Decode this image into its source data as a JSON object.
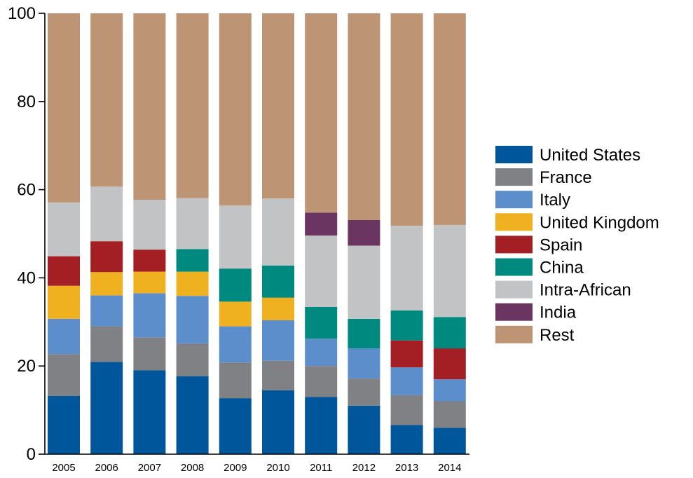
{
  "chart_data": {
    "type": "bar",
    "stacked": true,
    "categories": [
      "2005",
      "2006",
      "2007",
      "2008",
      "2009",
      "2010",
      "2011",
      "2012",
      "2013",
      "2014"
    ],
    "ylim": [
      0,
      100
    ],
    "yticks": [
      "0",
      "20",
      "40",
      "60",
      "80",
      "100"
    ],
    "grid": false,
    "legend_position": "right",
    "series": [
      {
        "name": "United States",
        "color": "#00569A",
        "values": [
          13.2,
          20.9,
          19.0,
          17.7,
          12.7,
          14.5,
          13.0,
          11.0,
          6.6,
          6.0
        ]
      },
      {
        "name": "France",
        "color": "#808184",
        "values": [
          9.5,
          8.1,
          7.5,
          7.4,
          8.1,
          6.7,
          7.0,
          6.2,
          6.8,
          6.0
        ]
      },
      {
        "name": "Italy",
        "color": "#5B8ECB",
        "values": [
          8.0,
          7.0,
          10.0,
          10.8,
          8.2,
          9.2,
          6.2,
          6.8,
          6.3,
          5.0
        ]
      },
      {
        "name": "United Kingdom",
        "color": "#EFB120",
        "values": [
          7.5,
          5.3,
          4.9,
          5.5,
          5.6,
          5.1,
          0,
          0,
          0,
          0
        ]
      },
      {
        "name": "Spain",
        "color": "#A41F24",
        "values": [
          6.7,
          7.0,
          5.0,
          0,
          0,
          0,
          0,
          0,
          6.1,
          7.0
        ]
      },
      {
        "name": "China",
        "color": "#008A7F",
        "values": [
          0,
          0,
          0,
          5.1,
          7.5,
          7.3,
          7.2,
          6.7,
          6.8,
          7.1
        ]
      },
      {
        "name": "Intra-African",
        "color": "#C2C3C5",
        "values": [
          12.2,
          12.4,
          11.3,
          11.6,
          14.3,
          15.2,
          16.2,
          16.6,
          19.2,
          20.9
        ]
      },
      {
        "name": "India",
        "color": "#6A3560",
        "values": [
          0,
          0,
          0,
          0,
          0,
          0,
          5.2,
          5.8,
          0,
          0
        ]
      },
      {
        "name": "Rest",
        "color": "#BD9474",
        "values": [
          42.9,
          39.3,
          42.3,
          41.9,
          43.6,
          42.0,
          45.2,
          46.9,
          48.2,
          48.0
        ]
      }
    ]
  }
}
